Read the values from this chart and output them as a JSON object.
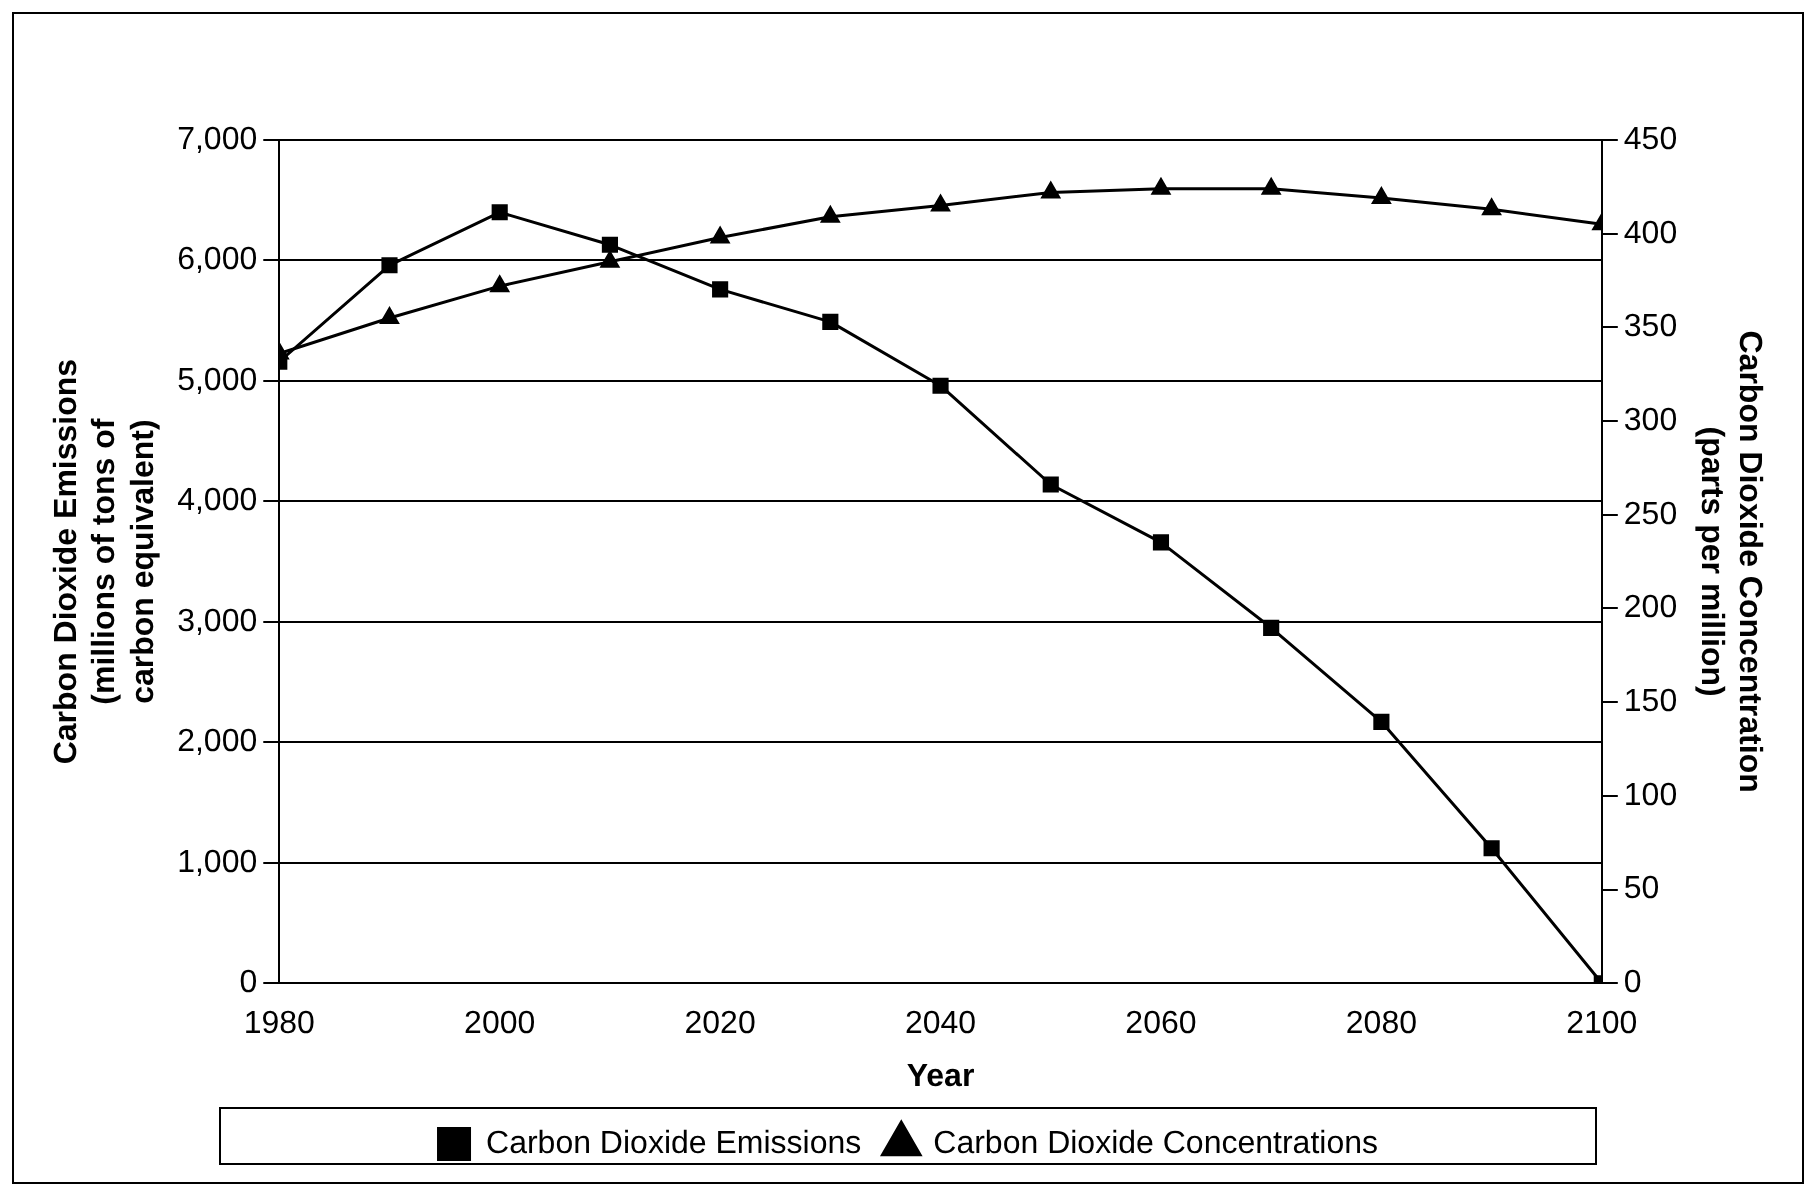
{
  "chart_data": {
    "type": "line",
    "xlabel": "Year",
    "ylabel": "Carbon Dioxide Emissions (millions of tons of carbon equivalent)",
    "y2label": "Carbon Dioxide Concentration (parts per million)",
    "x": [
      1980,
      1990,
      2000,
      2010,
      2020,
      2030,
      2040,
      2050,
      2060,
      2070,
      2080,
      2090,
      2100
    ],
    "xlim": [
      1980,
      2100
    ],
    "xticks": [
      1980,
      2000,
      2020,
      2040,
      2060,
      2080,
      2100
    ],
    "ylim": [
      0,
      7000
    ],
    "yticks": [
      0,
      {
        "value": 1000,
        "label": "1,000"
      },
      {
        "value": 2000,
        "label": "2,000"
      },
      {
        "value": 3000,
        "label": "3,000"
      },
      {
        "value": 4000,
        "label": "4,000"
      },
      {
        "value": 5000,
        "label": "5,000"
      },
      {
        "value": 6000,
        "label": "6,000"
      },
      {
        "value": 7000,
        "label": "7,000"
      }
    ],
    "y2lim": [
      0,
      450
    ],
    "y2ticks": [
      0,
      50,
      100,
      150,
      200,
      250,
      300,
      350,
      400,
      450
    ],
    "series": [
      {
        "name": "Carbon Dioxide Emissions",
        "color": "#000000",
        "marker": "square",
        "values": [
          5160,
          5960,
          6400,
          6130,
          5760,
          5490,
          4960,
          4140,
          3660,
          2950,
          2170,
          1120,
          0
        ]
      },
      {
        "name": "Carbon Dioxide Concentrations",
        "color": "#000000",
        "marker": "triangle",
        "axis": "y2",
        "values": [
          336,
          355,
          372,
          385,
          398,
          409,
          415,
          422,
          424,
          424,
          419,
          413,
          405
        ]
      }
    ],
    "grid": "y",
    "legend": "bottom",
    "line_style": "solid"
  }
}
